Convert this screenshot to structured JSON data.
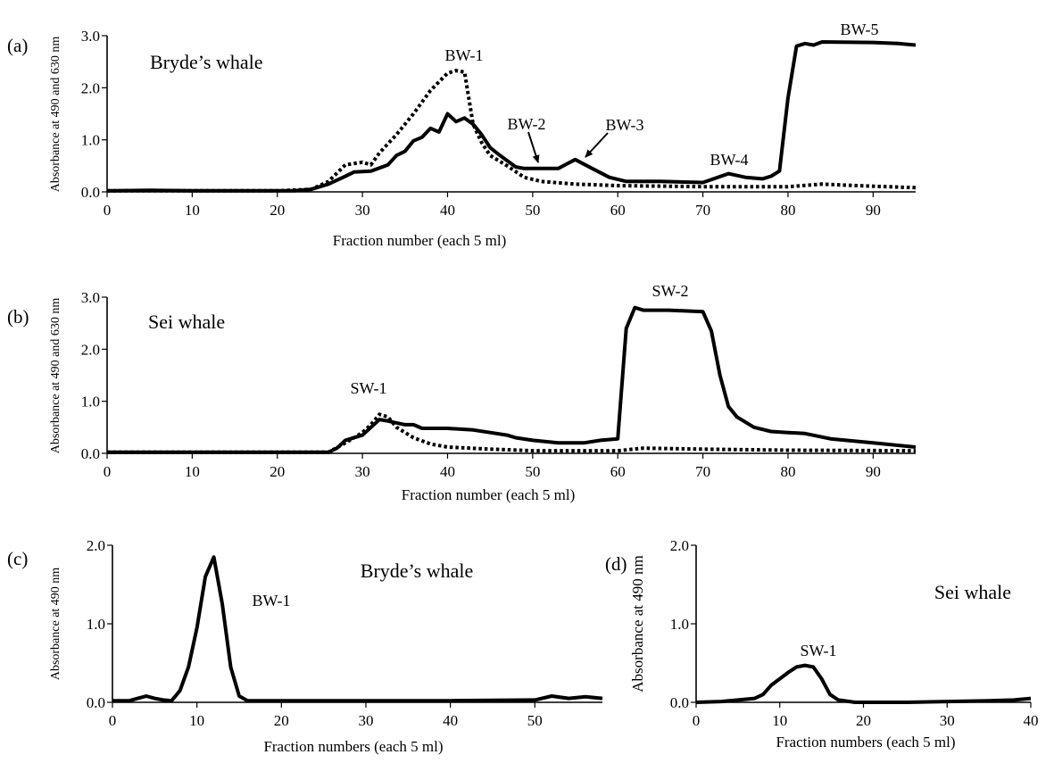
{
  "charts": [
    {
      "panel": "(a)",
      "title": "Bryde’s whale",
      "xlabel": "Fraction number (each 5 ml)",
      "ylabel": "Absorbance at 490 and 630 nm",
      "x_ticks": [
        "0",
        "10",
        "20",
        "30",
        "40",
        "50",
        "60",
        "70",
        "80",
        "90"
      ],
      "y_ticks": [
        "0.0",
        "1.0",
        "2.0",
        "3.0"
      ],
      "peak_labels": [
        "BW-1",
        "BW-2",
        "BW-3",
        "BW-4",
        "BW-5"
      ]
    },
    {
      "panel": "(b)",
      "title": "Sei whale",
      "xlabel": "Fraction number (each 5 ml)",
      "ylabel": "Absorbance at 490 and 630 nm",
      "x_ticks": [
        "0",
        "10",
        "20",
        "30",
        "40",
        "50",
        "60",
        "70",
        "80",
        "90"
      ],
      "y_ticks": [
        "0.0",
        "1.0",
        "2.0",
        "3.0"
      ],
      "peak_labels": [
        "SW-1",
        "SW-2"
      ]
    },
    {
      "panel": "(c)",
      "title": "Bryde’s whale",
      "xlabel": "Fraction numbers (each 5 ml)",
      "ylabel": "Absorbance at 490 nm",
      "x_ticks": [
        "0",
        "10",
        "20",
        "30",
        "40",
        "50"
      ],
      "y_ticks": [
        "0.0",
        "1.0",
        "2.0"
      ],
      "peak_labels": [
        "BW-1"
      ]
    },
    {
      "panel": "(d)",
      "title": "Sei whale",
      "xlabel": "Fraction numbers (each 5 ml)",
      "ylabel": "Absorbance at 490 nm",
      "x_ticks": [
        "0",
        "10",
        "20",
        "30",
        "40"
      ],
      "y_ticks": [
        "0.0",
        "1.0",
        "2.0"
      ],
      "peak_labels": [
        "SW-1"
      ]
    }
  ],
  "chart_data": [
    {
      "type": "line",
      "xlim": [
        0,
        95
      ],
      "ylim": [
        0,
        3.0
      ],
      "series": [
        {
          "style": "solid",
          "points": [
            [
              0,
              0.02
            ],
            [
              5,
              0.03
            ],
            [
              10,
              0.02
            ],
            [
              15,
              0.02
            ],
            [
              20,
              0.02
            ],
            [
              22,
              0.02
            ],
            [
              24,
              0.05
            ],
            [
              26,
              0.15
            ],
            [
              28,
              0.3
            ],
            [
              29,
              0.38
            ],
            [
              31,
              0.4
            ],
            [
              33,
              0.52
            ],
            [
              34,
              0.7
            ],
            [
              35,
              0.78
            ],
            [
              36,
              0.98
            ],
            [
              37,
              1.05
            ],
            [
              38,
              1.22
            ],
            [
              39,
              1.15
            ],
            [
              40,
              1.5
            ],
            [
              41,
              1.35
            ],
            [
              42,
              1.42
            ],
            [
              43,
              1.3
            ],
            [
              44,
              1.1
            ],
            [
              45,
              0.85
            ],
            [
              46,
              0.72
            ],
            [
              47,
              0.6
            ],
            [
              48,
              0.48
            ],
            [
              49,
              0.45
            ],
            [
              51,
              0.45
            ],
            [
              53,
              0.45
            ],
            [
              55,
              0.62
            ],
            [
              57,
              0.45
            ],
            [
              59,
              0.28
            ],
            [
              61,
              0.2
            ],
            [
              65,
              0.2
            ],
            [
              70,
              0.18
            ],
            [
              73,
              0.35
            ],
            [
              75,
              0.28
            ],
            [
              77,
              0.25
            ],
            [
              78,
              0.3
            ],
            [
              79,
              0.4
            ],
            [
              80,
              1.8
            ],
            [
              81,
              2.8
            ],
            [
              82,
              2.85
            ],
            [
              83,
              2.82
            ],
            [
              84,
              2.88
            ],
            [
              90,
              2.87
            ],
            [
              93,
              2.85
            ],
            [
              95,
              2.82
            ]
          ]
        },
        {
          "style": "dotted",
          "points": [
            [
              0,
              0.02
            ],
            [
              20,
              0.02
            ],
            [
              24,
              0.05
            ],
            [
              26,
              0.2
            ],
            [
              28,
              0.52
            ],
            [
              30,
              0.57
            ],
            [
              31,
              0.52
            ],
            [
              32,
              0.75
            ],
            [
              34,
              1.1
            ],
            [
              36,
              1.5
            ],
            [
              38,
              1.95
            ],
            [
              40,
              2.28
            ],
            [
              41,
              2.33
            ],
            [
              42,
              2.3
            ],
            [
              43,
              1.3
            ],
            [
              44,
              0.95
            ],
            [
              45,
              0.7
            ],
            [
              47,
              0.5
            ],
            [
              49,
              0.28
            ],
            [
              51,
              0.2
            ],
            [
              55,
              0.15
            ],
            [
              60,
              0.12
            ],
            [
              70,
              0.1
            ],
            [
              80,
              0.1
            ],
            [
              84,
              0.15
            ],
            [
              88,
              0.12
            ],
            [
              95,
              0.08
            ]
          ]
        }
      ]
    },
    {
      "type": "line",
      "xlim": [
        0,
        95
      ],
      "ylim": [
        0,
        3.0
      ],
      "series": [
        {
          "style": "solid",
          "points": [
            [
              0,
              0.02
            ],
            [
              10,
              0.02
            ],
            [
              20,
              0.02
            ],
            [
              26,
              0.02
            ],
            [
              27,
              0.1
            ],
            [
              28,
              0.25
            ],
            [
              30,
              0.35
            ],
            [
              31,
              0.5
            ],
            [
              32,
              0.65
            ],
            [
              33,
              0.62
            ],
            [
              35,
              0.55
            ],
            [
              36,
              0.55
            ],
            [
              37,
              0.48
            ],
            [
              40,
              0.48
            ],
            [
              43,
              0.45
            ],
            [
              45,
              0.4
            ],
            [
              47,
              0.35
            ],
            [
              48,
              0.3
            ],
            [
              50,
              0.25
            ],
            [
              53,
              0.2
            ],
            [
              56,
              0.2
            ],
            [
              58,
              0.25
            ],
            [
              60,
              0.28
            ],
            [
              61,
              2.4
            ],
            [
              62,
              2.8
            ],
            [
              63,
              2.75
            ],
            [
              66,
              2.75
            ],
            [
              70,
              2.72
            ],
            [
              71,
              2.35
            ],
            [
              72,
              1.5
            ],
            [
              73,
              0.9
            ],
            [
              74,
              0.7
            ],
            [
              76,
              0.5
            ],
            [
              78,
              0.42
            ],
            [
              80,
              0.4
            ],
            [
              82,
              0.38
            ],
            [
              85,
              0.28
            ],
            [
              90,
              0.2
            ],
            [
              95,
              0.12
            ]
          ]
        },
        {
          "style": "dotted",
          "points": [
            [
              0,
              0.02
            ],
            [
              26,
              0.02
            ],
            [
              28,
              0.2
            ],
            [
              30,
              0.4
            ],
            [
              31,
              0.55
            ],
            [
              32,
              0.75
            ],
            [
              33,
              0.7
            ],
            [
              34,
              0.5
            ],
            [
              36,
              0.3
            ],
            [
              38,
              0.18
            ],
            [
              40,
              0.12
            ],
            [
              45,
              0.08
            ],
            [
              50,
              0.05
            ],
            [
              60,
              0.05
            ],
            [
              63,
              0.1
            ],
            [
              70,
              0.08
            ],
            [
              80,
              0.06
            ],
            [
              95,
              0.05
            ]
          ]
        }
      ]
    },
    {
      "type": "line",
      "xlim": [
        0,
        58
      ],
      "ylim": [
        0,
        2.0
      ],
      "series": [
        {
          "style": "solid",
          "points": [
            [
              0,
              0.02
            ],
            [
              2,
              0.02
            ],
            [
              3,
              0.05
            ],
            [
              4,
              0.08
            ],
            [
              5,
              0.05
            ],
            [
              6,
              0.03
            ],
            [
              7,
              0.02
            ],
            [
              8,
              0.15
            ],
            [
              9,
              0.45
            ],
            [
              10,
              0.95
            ],
            [
              11,
              1.6
            ],
            [
              12,
              1.85
            ],
            [
              13,
              1.25
            ],
            [
              14,
              0.45
            ],
            [
              15,
              0.08
            ],
            [
              16,
              0.02
            ],
            [
              20,
              0.02
            ],
            [
              30,
              0.02
            ],
            [
              40,
              0.02
            ],
            [
              50,
              0.03
            ],
            [
              52,
              0.08
            ],
            [
              54,
              0.05
            ],
            [
              56,
              0.07
            ],
            [
              58,
              0.05
            ]
          ]
        }
      ]
    },
    {
      "type": "line",
      "xlim": [
        0,
        40
      ],
      "ylim": [
        0,
        2.0
      ],
      "series": [
        {
          "style": "solid",
          "points": [
            [
              0,
              0.0
            ],
            [
              3,
              0.01
            ],
            [
              5,
              0.03
            ],
            [
              7,
              0.05
            ],
            [
              8,
              0.1
            ],
            [
              9,
              0.22
            ],
            [
              10,
              0.3
            ],
            [
              11,
              0.38
            ],
            [
              12,
              0.45
            ],
            [
              13,
              0.47
            ],
            [
              14,
              0.45
            ],
            [
              15,
              0.3
            ],
            [
              16,
              0.1
            ],
            [
              17,
              0.03
            ],
            [
              19,
              0.0
            ],
            [
              25,
              0.0
            ],
            [
              30,
              0.01
            ],
            [
              35,
              0.02
            ],
            [
              38,
              0.03
            ],
            [
              40,
              0.05
            ]
          ]
        }
      ]
    }
  ]
}
